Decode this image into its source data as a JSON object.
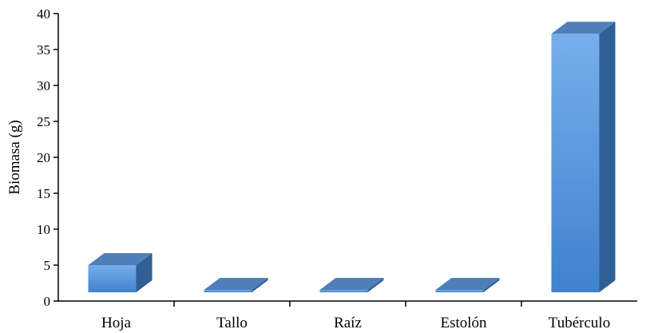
{
  "chart_data": {
    "type": "bar",
    "style": "3d-column",
    "title": "",
    "xlabel": "",
    "ylabel": "Biomasa (g)",
    "ylim": [
      0,
      40
    ],
    "yticks": [
      0,
      5,
      10,
      15,
      20,
      25,
      30,
      35,
      40
    ],
    "categories": [
      "Hoja",
      "Tallo",
      "Raíz",
      "Estolón",
      "Tubérculo"
    ],
    "values": [
      5,
      1.3,
      1.3,
      0.3,
      37.2
    ],
    "grid": false,
    "legend": "none",
    "colors": {
      "bar_front_top": "#76aeea",
      "bar_front_bottom": "#3f82cf",
      "bar_top": "#4f7fb8",
      "bar_side": "#2f5f95",
      "axis": "#000000"
    }
  }
}
